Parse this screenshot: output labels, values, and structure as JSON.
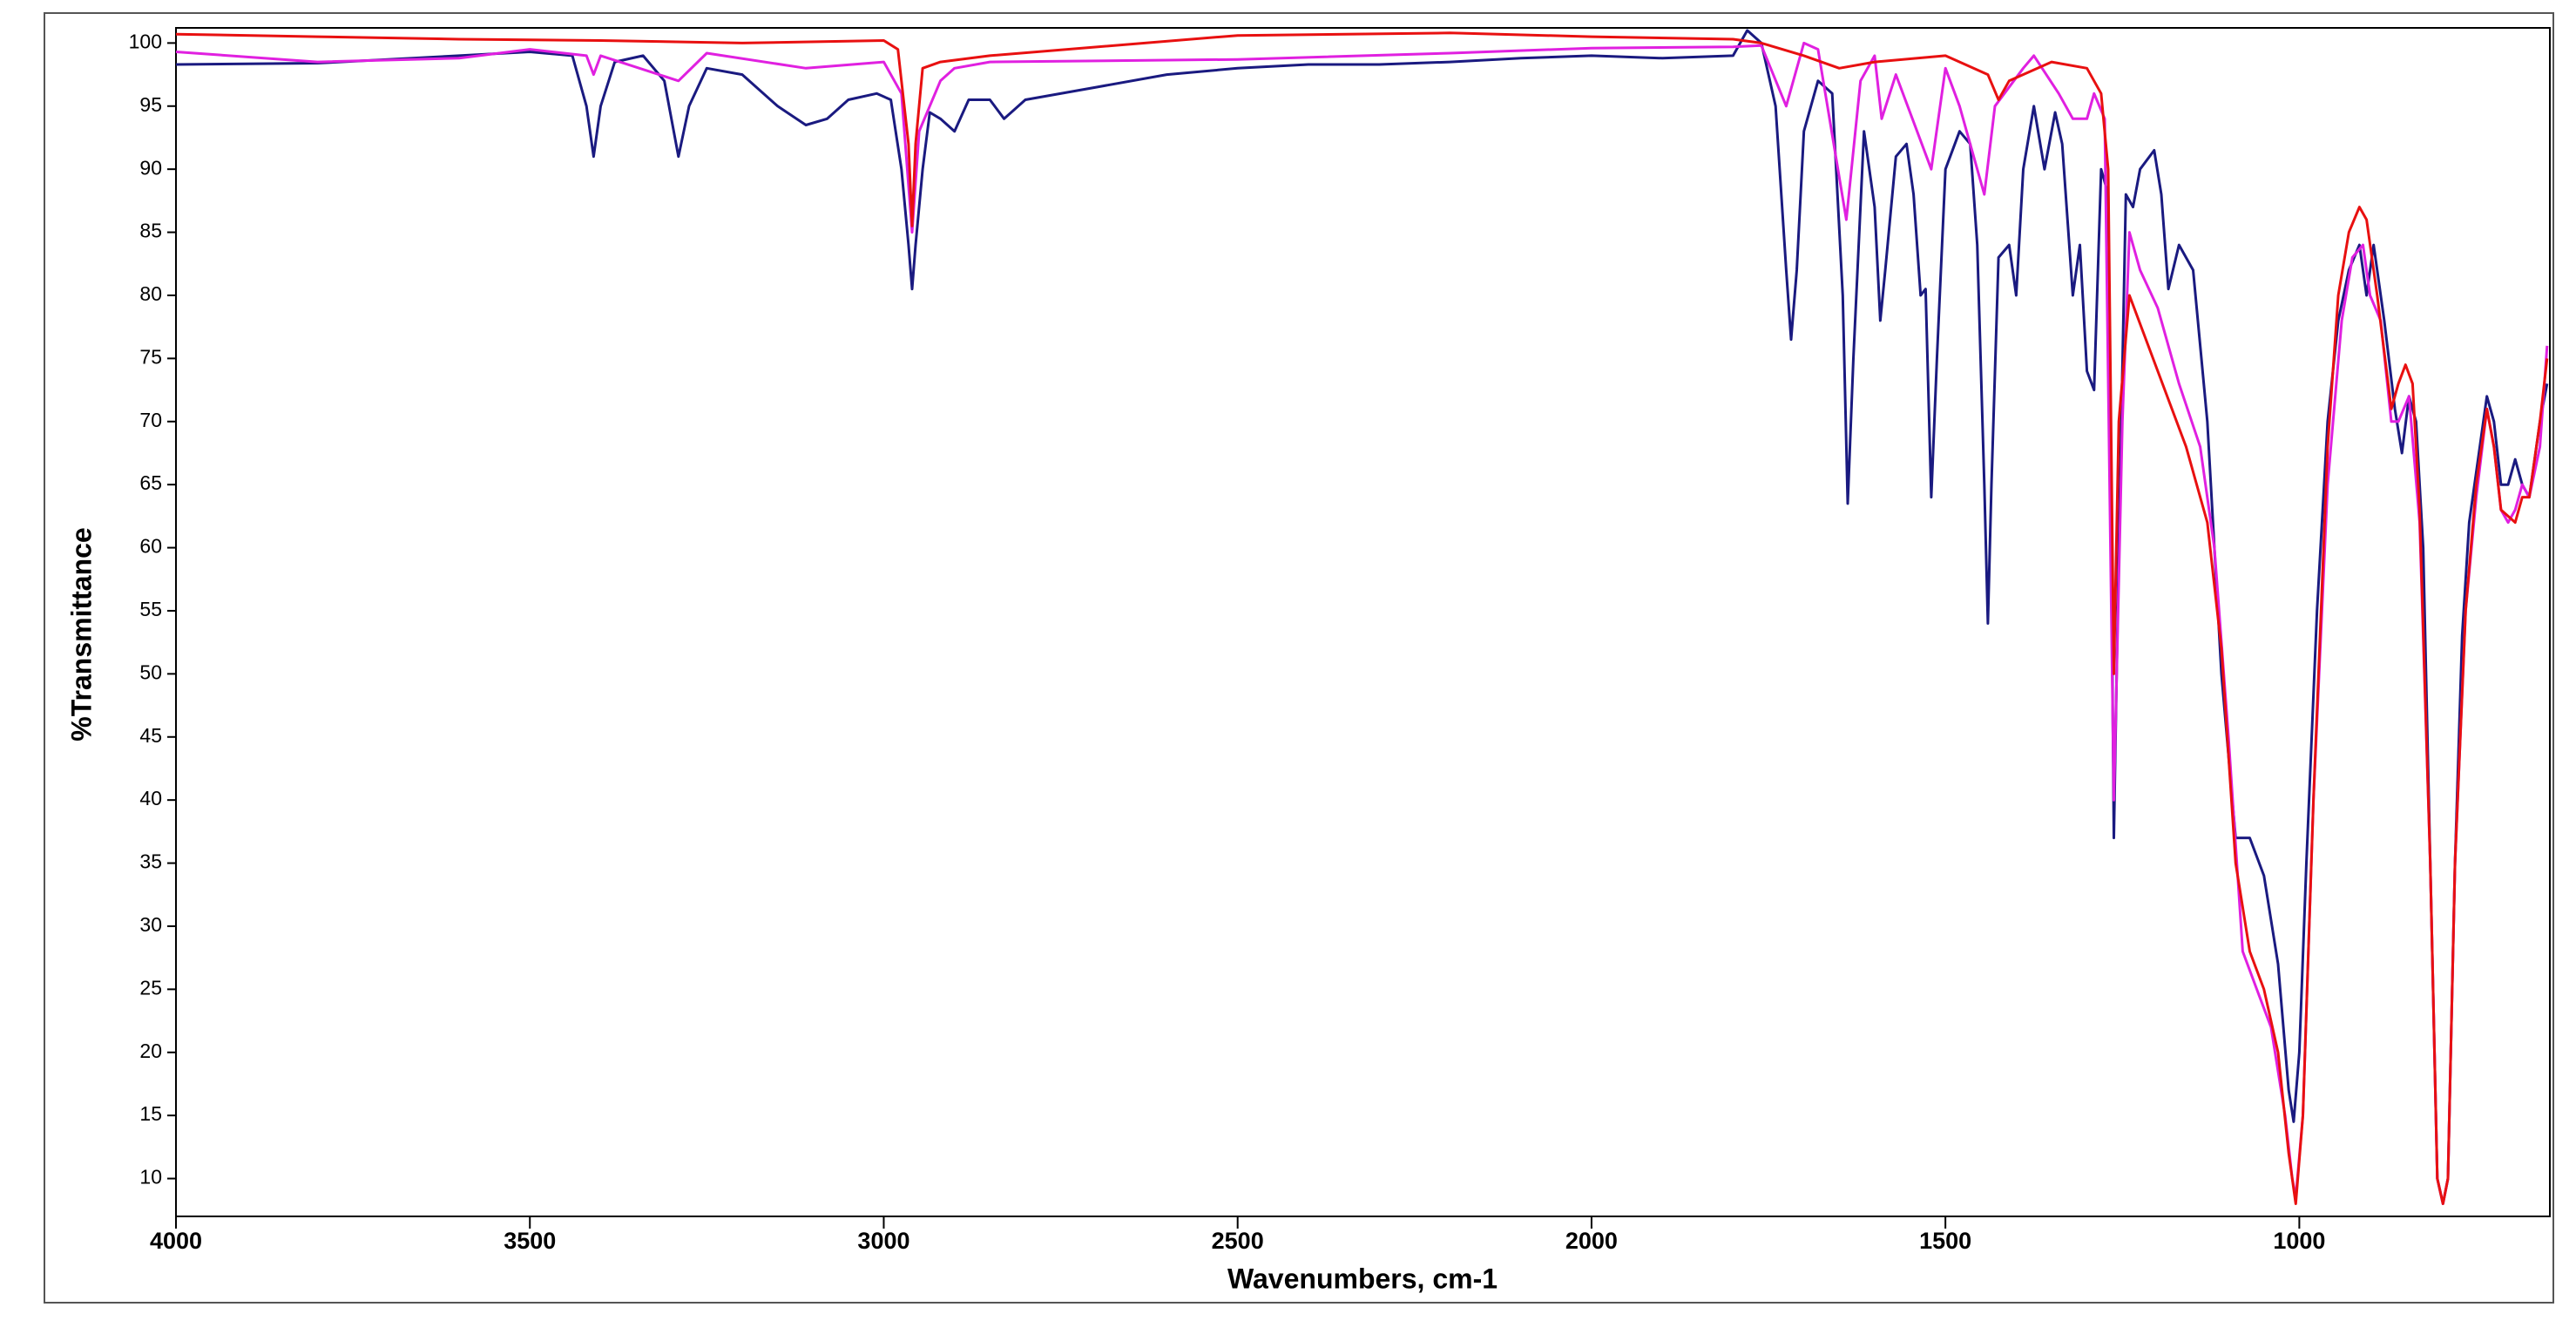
{
  "chart_data": {
    "type": "line",
    "x_label": "Wavenumbers, cm-1",
    "y_label": "%Transmittance",
    "xlim": [
      4000,
      646
    ],
    "ylim": [
      7,
      101.2
    ],
    "xticks": [
      4000,
      3500,
      3000,
      2500,
      2000,
      1500,
      1000
    ],
    "yticks": [
      10,
      15,
      20,
      25,
      30,
      35,
      40,
      45,
      50,
      55,
      60,
      65,
      70,
      75,
      80,
      85,
      90,
      95,
      100
    ],
    "series": [
      {
        "color": "#1a1a80",
        "x": [
          4000,
          3800,
          3600,
          3500,
          3440,
          3420,
          3410,
          3400,
          3380,
          3340,
          3310,
          3290,
          3275,
          3250,
          3200,
          3150,
          3110,
          3080,
          3050,
          3010,
          2990,
          2975,
          2965,
          2960,
          2955,
          2945,
          2935,
          2920,
          2900,
          2880,
          2850,
          2830,
          2800,
          2700,
          2600,
          2500,
          2400,
          2300,
          2200,
          2100,
          2000,
          1900,
          1800,
          1780,
          1760,
          1740,
          1725,
          1718,
          1710,
          1700,
          1680,
          1660,
          1645,
          1638,
          1630,
          1615,
          1600,
          1592,
          1585,
          1570,
          1555,
          1545,
          1535,
          1528,
          1520,
          1512,
          1500,
          1480,
          1465,
          1455,
          1445,
          1440,
          1435,
          1425,
          1410,
          1400,
          1390,
          1375,
          1360,
          1345,
          1335,
          1320,
          1310,
          1300,
          1290,
          1280,
          1270,
          1262,
          1255,
          1245,
          1235,
          1225,
          1205,
          1195,
          1185,
          1170,
          1150,
          1130,
          1110,
          1090,
          1070,
          1050,
          1030,
          1015,
          1008,
          1000,
          990,
          975,
          960,
          945,
          930,
          915,
          905,
          895,
          880,
          865,
          855,
          845,
          835,
          825,
          815,
          805,
          797,
          790,
          780,
          770,
          760,
          745,
          735,
          725,
          715,
          705,
          695,
          685,
          675,
          660,
          650
        ],
        "values": [
          98.3,
          98.4,
          99,
          99.3,
          99,
          95,
          91,
          95,
          98.5,
          99,
          97,
          91,
          95,
          98,
          97.5,
          95,
          93.5,
          94,
          95.5,
          96,
          95.5,
          90,
          84,
          80.5,
          84,
          90,
          94.5,
          94,
          93,
          95.5,
          95.5,
          94,
          95.5,
          96.5,
          97.5,
          98,
          98.3,
          98.3,
          98.5,
          98.8,
          99,
          98.8,
          99,
          101,
          100,
          95,
          82,
          76.5,
          82,
          93,
          97,
          96,
          80,
          63.5,
          75,
          93,
          87,
          78,
          82,
          91,
          92,
          88,
          80,
          80.5,
          64,
          75,
          90,
          93,
          92,
          84,
          65,
          54,
          65,
          83,
          84,
          80,
          90,
          95,
          90,
          94.5,
          92,
          80,
          84,
          74,
          72.5,
          90,
          88,
          37,
          60,
          88,
          87,
          90,
          91.5,
          88,
          80.5,
          84,
          82,
          70,
          50,
          37,
          37,
          34,
          27,
          17,
          14.5,
          20,
          35,
          55,
          70,
          78,
          82,
          84,
          80,
          84,
          78,
          71,
          67.5,
          72,
          70,
          60,
          35,
          10,
          8,
          10,
          35,
          53,
          62,
          68,
          72,
          70,
          65,
          65,
          67,
          65,
          64,
          70,
          73
        ]
      },
      {
        "color": "#e020e0",
        "x": [
          4000,
          3800,
          3600,
          3500,
          3420,
          3410,
          3400,
          3290,
          3250,
          3110,
          3000,
          2975,
          2960,
          2950,
          2920,
          2900,
          2850,
          2500,
          2200,
          2000,
          1800,
          1760,
          1725,
          1700,
          1680,
          1640,
          1620,
          1600,
          1590,
          1570,
          1520,
          1500,
          1480,
          1445,
          1430,
          1390,
          1375,
          1340,
          1320,
          1300,
          1290,
          1275,
          1262,
          1250,
          1240,
          1225,
          1200,
          1170,
          1140,
          1120,
          1100,
          1080,
          1060,
          1040,
          1020,
          1010,
          1005,
          995,
          980,
          960,
          940,
          925,
          910,
          900,
          885,
          870,
          860,
          845,
          830,
          815,
          805,
          797,
          790,
          780,
          765,
          750,
          735,
          725,
          715,
          705,
          695,
          685,
          675,
          660,
          650
        ],
        "values": [
          99.3,
          98.5,
          98.8,
          99.5,
          99,
          97.5,
          99,
          97,
          99.2,
          98,
          98.5,
          96,
          85,
          93,
          97,
          98,
          98.5,
          98.7,
          99.2,
          99.6,
          99.7,
          99.8,
          95,
          100,
          99.5,
          86,
          97,
          99,
          94,
          97.5,
          90,
          98,
          95,
          88,
          95,
          98,
          99,
          96,
          94,
          94,
          96,
          94,
          40,
          70,
          85,
          82,
          79,
          73,
          68,
          60,
          45,
          28,
          25,
          22,
          15,
          10,
          8.5,
          15,
          40,
          65,
          78,
          83,
          84,
          80,
          78,
          70,
          70,
          72,
          62,
          35,
          10,
          8,
          10,
          35,
          55,
          64,
          71,
          68,
          63,
          62,
          63,
          65,
          64,
          68,
          76
        ]
      },
      {
        "color": "#e81010",
        "x": [
          4000,
          3800,
          3600,
          3400,
          3200,
          3000,
          2980,
          2965,
          2960,
          2955,
          2945,
          2920,
          2850,
          2500,
          2200,
          2000,
          1800,
          1760,
          1700,
          1650,
          1600,
          1500,
          1440,
          1425,
          1410,
          1350,
          1300,
          1280,
          1270,
          1262,
          1255,
          1240,
          1200,
          1160,
          1130,
          1110,
          1090,
          1070,
          1050,
          1030,
          1015,
          1005,
          995,
          980,
          960,
          945,
          930,
          915,
          905,
          890,
          870,
          860,
          850,
          840,
          830,
          815,
          805,
          797,
          790,
          780,
          765,
          750,
          735,
          725,
          715,
          705,
          695,
          685,
          675,
          660,
          650
        ],
        "values": [
          100.7,
          100.5,
          100.3,
          100.2,
          100,
          100.2,
          99.5,
          92,
          85.5,
          92,
          98,
          98.5,
          99,
          100.6,
          100.8,
          100.5,
          100.3,
          100,
          99,
          98,
          98.5,
          99,
          97.5,
          95.5,
          97,
          98.5,
          98,
          96,
          90,
          50,
          70,
          80,
          74,
          68,
          62,
          52,
          35,
          28,
          25,
          20,
          12,
          8,
          15,
          40,
          68,
          80,
          85,
          87,
          86,
          80,
          71,
          73,
          74.5,
          73,
          63,
          35,
          10,
          8,
          10,
          35,
          55,
          65,
          71,
          68,
          63,
          62.5,
          62,
          64,
          64,
          70,
          75
        ]
      }
    ]
  }
}
